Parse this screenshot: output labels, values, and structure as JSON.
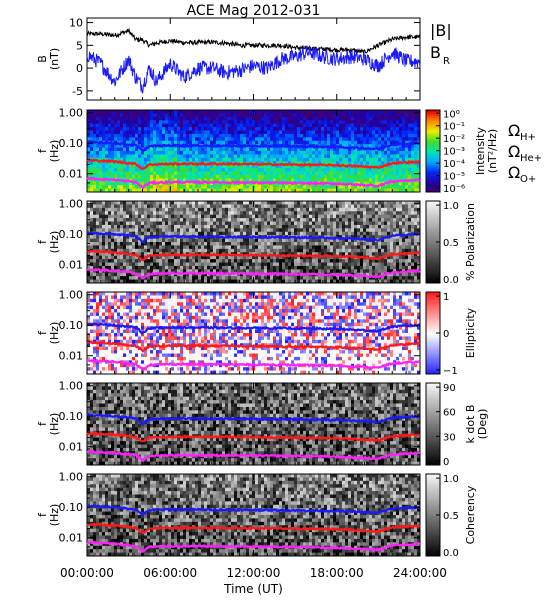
{
  "chart_data": {
    "type": "line",
    "title": "ACE Mag 2012-031",
    "xlabel": "Time (UT)",
    "x_ticks": [
      "00:00:00",
      "06:00:00",
      "12:00:00",
      "18:00:00",
      "24:00:00"
    ],
    "x_range": [
      "00:00:00",
      "24:00:00"
    ],
    "panels": [
      {
        "type": "line",
        "ylabel": "B",
        "yunit": "(nT)",
        "ylim": [
          -7,
          11
        ],
        "y_ticks": [
          "10",
          "5",
          "0",
          "-5"
        ],
        "series": [
          {
            "name": "|B|",
            "color": "#000000",
            "x_hours": [
              0,
              1,
              2,
              3,
              3.5,
              4,
              4.5,
              5,
              6,
              7,
              8,
              9,
              10,
              11,
              12,
              13,
              14,
              15,
              16,
              17,
              18,
              19,
              20,
              21,
              22,
              23,
              24
            ],
            "values": [
              7.5,
              7.5,
              7.2,
              8.2,
              6.3,
              6.2,
              5.0,
              5.5,
              6.0,
              5.6,
              5.6,
              5.7,
              5.5,
              5.0,
              5.0,
              5.0,
              5.0,
              4.5,
              4.3,
              4.2,
              4.0,
              4.0,
              3.5,
              5.0,
              6.3,
              6.8,
              6.8
            ]
          },
          {
            "name": "B",
            "subscript": "R",
            "color": "#1a1aff",
            "x_hours": [
              0,
              1,
              2,
              3,
              3.5,
              4,
              4.5,
              5,
              6,
              7,
              8,
              9,
              10,
              11,
              12,
              13,
              14,
              15,
              16,
              17,
              18,
              19,
              20,
              21,
              22,
              23,
              24
            ],
            "values": [
              3.0,
              1.0,
              -3.0,
              2.0,
              -2.0,
              -4.0,
              0.0,
              -3.0,
              1.0,
              -2.0,
              0.0,
              0.0,
              -1.0,
              -0.5,
              0.5,
              0.0,
              2.0,
              2.5,
              3.5,
              2.5,
              2.0,
              2.5,
              2.0,
              0.5,
              3.5,
              1.5,
              1.5
            ]
          }
        ]
      },
      {
        "type": "heatmap",
        "ylabel": "f",
        "yunit": "(Hz)",
        "y_ticks": [
          "1.00",
          "0.10",
          "0.01"
        ],
        "colorbar": {
          "label": "Intensity",
          "unit": "(nT²/Hz)",
          "ticks": [
            "10⁰",
            "10⁻¹",
            "10⁻²",
            "10⁻³",
            "10⁻⁴",
            "10⁻⁵",
            "10⁻⁶"
          ]
        },
        "legend": [
          {
            "symbol": "Ω",
            "sub": "H+",
            "color": "#1a1aff"
          },
          {
            "symbol": "Ω",
            "sub": "He+",
            "color": "#ff1a1a"
          },
          {
            "symbol": "Ω",
            "sub": "O+",
            "color": "#ff22ff"
          }
        ]
      },
      {
        "type": "heatmap",
        "ylabel": "f",
        "yunit": "(Hz)",
        "y_ticks": [
          "1.00",
          "0.10",
          "0.01"
        ],
        "colorbar": {
          "label": "% Polarization",
          "unit": "",
          "ticks": [
            "1.0",
            "0.5",
            "0.0"
          ]
        }
      },
      {
        "type": "heatmap",
        "ylabel": "f",
        "yunit": "(Hz)",
        "y_ticks": [
          "1.00",
          "0.10",
          "0.01"
        ],
        "colorbar": {
          "label": "Ellipticity",
          "unit": "",
          "ticks": [
            "1",
            "0",
            "−1"
          ]
        }
      },
      {
        "type": "heatmap",
        "ylabel": "f",
        "yunit": "(Hz)",
        "y_ticks": [
          "1.00",
          "0.10",
          "0.01"
        ],
        "colorbar": {
          "label": "k dot B",
          "unit": "(Deg)",
          "ticks": [
            "90",
            "60",
            "30",
            "0"
          ]
        }
      },
      {
        "type": "heatmap",
        "ylabel": "f",
        "yunit": "(Hz)",
        "y_ticks": [
          "1.00",
          "0.10",
          "0.01"
        ],
        "colorbar": {
          "label": "Coherency",
          "unit": "",
          "ticks": [
            "1.0",
            "0.5",
            "0.0"
          ]
        }
      }
    ],
    "gyrofrequency_lines": [
      {
        "name": "H+",
        "color": "#1a1aff",
        "x_hours": [
          0,
          2,
          3.5,
          4,
          4.5,
          6,
          10,
          14,
          18,
          21,
          22,
          24
        ],
        "values_hz": [
          0.11,
          0.1,
          0.085,
          0.055,
          0.08,
          0.085,
          0.082,
          0.08,
          0.075,
          0.065,
          0.09,
          0.1
        ]
      },
      {
        "name": "He+",
        "color": "#ff1a1a",
        "x_hours": [
          0,
          2,
          3.5,
          4,
          4.5,
          6,
          10,
          14,
          18,
          21,
          22,
          24
        ],
        "values_hz": [
          0.028,
          0.025,
          0.021,
          0.014,
          0.02,
          0.021,
          0.021,
          0.02,
          0.019,
          0.016,
          0.022,
          0.025
        ]
      },
      {
        "name": "O+",
        "color": "#ff22ff",
        "x_hours": [
          0,
          2,
          3.5,
          4,
          4.5,
          6,
          10,
          14,
          18,
          21,
          22,
          24
        ],
        "values_hz": [
          0.007,
          0.0063,
          0.0053,
          0.0035,
          0.005,
          0.0053,
          0.0052,
          0.005,
          0.0047,
          0.004,
          0.0056,
          0.0063
        ]
      }
    ]
  }
}
